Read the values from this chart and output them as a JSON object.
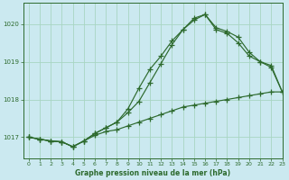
{
  "title": "Graphe pression niveau de la mer (hPa)",
  "bg_color": "#cbe9f0",
  "line_color": "#2d6a2d",
  "grid_color": "#a8d5c2",
  "xlim": [
    -0.5,
    23
  ],
  "ylim": [
    1016.45,
    1020.55
  ],
  "yticks": [
    1017,
    1018,
    1019,
    1020
  ],
  "xticks": [
    0,
    1,
    2,
    3,
    4,
    5,
    6,
    7,
    8,
    9,
    10,
    11,
    12,
    13,
    14,
    15,
    16,
    17,
    18,
    19,
    20,
    21,
    22,
    23
  ],
  "series1_x": [
    0,
    1,
    2,
    3,
    4,
    5,
    6,
    7,
    8,
    9,
    10,
    11,
    12,
    13,
    14,
    15,
    16,
    17,
    18,
    19,
    20,
    21,
    22,
    23
  ],
  "series1_y": [
    1017.0,
    1016.95,
    1016.9,
    1016.88,
    1016.75,
    1016.9,
    1017.05,
    1017.15,
    1017.2,
    1017.3,
    1017.4,
    1017.5,
    1017.6,
    1017.7,
    1017.8,
    1017.85,
    1017.9,
    1017.95,
    1018.0,
    1018.05,
    1018.1,
    1018.15,
    1018.2,
    1018.2
  ],
  "series2_x": [
    0,
    1,
    2,
    3,
    4,
    5,
    6,
    7,
    8,
    9,
    10,
    11,
    12,
    13,
    14,
    15,
    16,
    17,
    18,
    19,
    20,
    21,
    22,
    23
  ],
  "series2_y": [
    1017.0,
    1016.95,
    1016.9,
    1016.88,
    1016.75,
    1016.9,
    1017.1,
    1017.25,
    1017.4,
    1017.75,
    1018.3,
    1018.8,
    1019.15,
    1019.55,
    1019.85,
    1020.15,
    1020.25,
    1019.85,
    1019.75,
    1019.5,
    1019.15,
    1019.0,
    1018.85,
    1018.2
  ],
  "series3_x": [
    0,
    1,
    2,
    3,
    4,
    5,
    6,
    7,
    8,
    9,
    10,
    11,
    12,
    13,
    14,
    15,
    16,
    17,
    18,
    19,
    20,
    21,
    22,
    23
  ],
  "series3_y": [
    1017.0,
    1016.95,
    1016.9,
    1016.88,
    1016.75,
    1016.9,
    1017.1,
    1017.25,
    1017.4,
    1017.65,
    1017.95,
    1018.45,
    1018.95,
    1019.45,
    1019.85,
    1020.1,
    1020.25,
    1019.9,
    1019.8,
    1019.65,
    1019.25,
    1019.0,
    1018.9,
    1018.2
  ],
  "figsize": [
    3.2,
    2.0
  ],
  "dpi": 100
}
